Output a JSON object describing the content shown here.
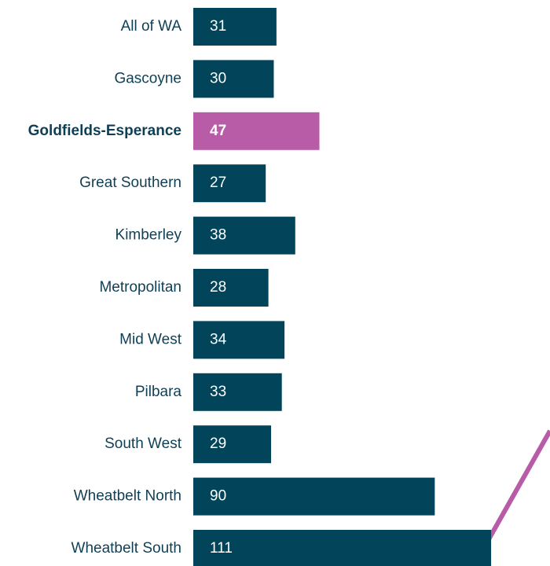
{
  "chart_data": {
    "type": "bar",
    "orientation": "horizontal",
    "categories": [
      "All of WA",
      "Gascoyne",
      "Goldfields-Esperance",
      "Great Southern",
      "Kimberley",
      "Metropolitan",
      "Mid West",
      "Pilbara",
      "South West",
      "Wheatbelt North",
      "Wheatbelt South"
    ],
    "values": [
      31,
      30,
      47,
      27,
      38,
      28,
      34,
      33,
      29,
      90,
      111
    ],
    "highlight": "Goldfields-Esperance",
    "title": "",
    "xlabel": "",
    "ylabel": "",
    "xlim": [
      0,
      125
    ],
    "grid": false,
    "legend": "none"
  },
  "colors": {
    "bar": "#02455a",
    "highlight_bar": "#b85ca7",
    "category_text": "#0f3f55",
    "value_text": "#ffffff",
    "connector_line": "#b85ca7",
    "circle_outline": "#2b2b2b"
  }
}
